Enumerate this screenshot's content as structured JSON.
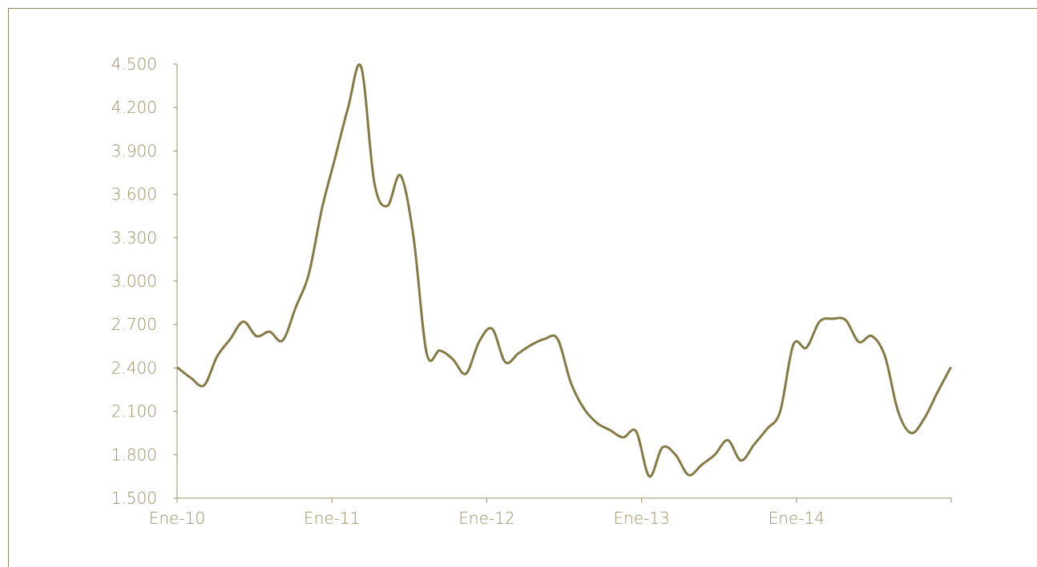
{
  "chart_data": {
    "type": "line",
    "title": "",
    "xlabel": "",
    "ylabel": "",
    "ylim": [
      1500,
      4500
    ],
    "yticks": [
      1500,
      1800,
      2100,
      2400,
      2700,
      3000,
      3300,
      3600,
      3900,
      4200,
      4500
    ],
    "ytick_labels": [
      "1.500",
      "1.800",
      "2.100",
      "2.400",
      "2.700",
      "3.000",
      "3.300",
      "3.600",
      "3.900",
      "4.200",
      "4.500"
    ],
    "xtick_labels": [
      "Ene-10",
      "Ene-11",
      "Ene-12",
      "Ene-13",
      "Ene-14"
    ],
    "x_start": "2010-01",
    "x_end": "2014-12",
    "grid": false,
    "legend": "none",
    "line_color": "#857a45",
    "axis_color": "#9b9065",
    "series": [
      {
        "values": [
          2400,
          2330,
          2280,
          2480,
          2600,
          2720,
          2620,
          2650,
          2590,
          2820,
          3050,
          3500,
          3850,
          4200,
          4480,
          3680,
          3520,
          3730,
          3300,
          2500,
          2520,
          2460,
          2360,
          2580,
          2670,
          2440,
          2500,
          2560,
          2600,
          2600,
          2300,
          2120,
          2020,
          1970,
          1920,
          1960,
          1650,
          1850,
          1800,
          1660,
          1730,
          1800,
          1900,
          1760,
          1870,
          1980,
          2100,
          2560,
          2540,
          2720,
          2740,
          2730,
          2580,
          2620,
          2480,
          2100,
          1950,
          2050,
          2230,
          2400
        ]
      }
    ]
  }
}
